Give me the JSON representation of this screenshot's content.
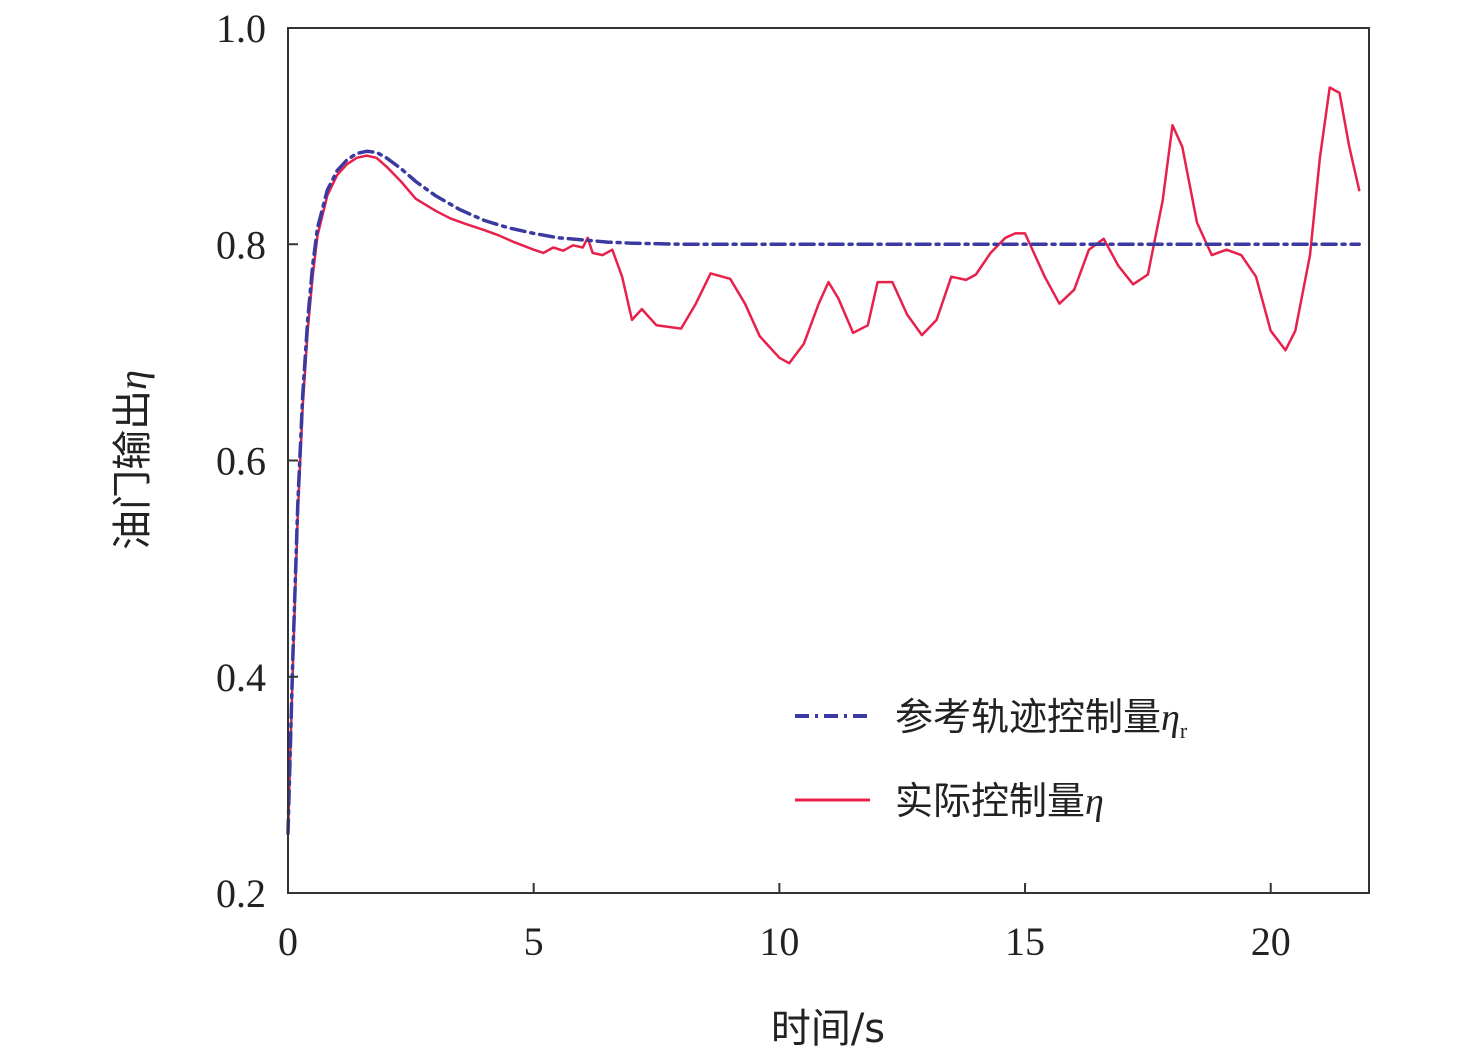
{
  "chart_data": {
    "type": "line",
    "xlabel": "时间/s",
    "ylabel_text": "油门输出",
    "ylabel_symbol": "η",
    "xlim": [
      0,
      22
    ],
    "ylim": [
      0.2,
      1.0
    ],
    "xticks": [
      0,
      5,
      10,
      15,
      20
    ],
    "xtick_labels": [
      "0",
      "5",
      "10",
      "15",
      "20"
    ],
    "yticks": [
      0.2,
      0.4,
      0.6,
      0.8,
      1.0
    ],
    "ytick_labels": [
      "0.2",
      "0.4",
      "0.6",
      "0.8",
      "1.0"
    ],
    "grid": false,
    "legend_position": "bottom-right",
    "series": [
      {
        "name_text": "参考轨迹控制量",
        "name_symbol": "η",
        "name_subscript": "r",
        "color": "#3a3aa0",
        "style": "dash-dot",
        "x": [
          0,
          0.1,
          0.2,
          0.3,
          0.4,
          0.5,
          0.6,
          0.8,
          1.0,
          1.2,
          1.4,
          1.6,
          1.8,
          2.0,
          2.3,
          2.6,
          3.0,
          3.5,
          4.0,
          4.5,
          5.0,
          5.5,
          6.0,
          6.5,
          7.0,
          8.0,
          9.0,
          10.0,
          12.0,
          14.0,
          16.0,
          18.0,
          20.0,
          21.8
        ],
        "y": [
          0.255,
          0.42,
          0.56,
          0.66,
          0.73,
          0.78,
          0.815,
          0.85,
          0.868,
          0.878,
          0.884,
          0.886,
          0.885,
          0.88,
          0.87,
          0.858,
          0.845,
          0.832,
          0.822,
          0.815,
          0.81,
          0.806,
          0.804,
          0.802,
          0.801,
          0.8,
          0.8,
          0.8,
          0.8,
          0.8,
          0.8,
          0.8,
          0.8,
          0.8
        ]
      },
      {
        "name_text": "实际控制量",
        "name_symbol": "η",
        "color": "#e8214b",
        "style": "solid",
        "x": [
          0,
          0.1,
          0.2,
          0.3,
          0.4,
          0.5,
          0.6,
          0.8,
          1.0,
          1.2,
          1.4,
          1.6,
          1.8,
          2.0,
          2.3,
          2.6,
          3.0,
          3.3,
          3.6,
          4.0,
          4.3,
          4.6,
          5.0,
          5.2,
          5.4,
          5.6,
          5.8,
          6.0,
          6.1,
          6.2,
          6.4,
          6.6,
          6.8,
          7.0,
          7.2,
          7.5,
          8.0,
          8.3,
          8.6,
          9.0,
          9.3,
          9.6,
          10.0,
          10.2,
          10.5,
          10.8,
          11.0,
          11.2,
          11.5,
          11.8,
          12.0,
          12.3,
          12.6,
          12.9,
          13.2,
          13.5,
          13.8,
          14.0,
          14.3,
          14.6,
          14.8,
          15.0,
          15.2,
          15.4,
          15.7,
          16.0,
          16.3,
          16.6,
          16.9,
          17.2,
          17.5,
          17.8,
          18.0,
          18.2,
          18.5,
          18.8,
          19.1,
          19.4,
          19.7,
          20.0,
          20.3,
          20.5,
          20.8,
          21.0,
          21.2,
          21.4,
          21.6,
          21.8
        ],
        "y": [
          0.255,
          0.41,
          0.55,
          0.65,
          0.72,
          0.77,
          0.808,
          0.845,
          0.864,
          0.874,
          0.88,
          0.882,
          0.88,
          0.872,
          0.858,
          0.842,
          0.831,
          0.824,
          0.819,
          0.813,
          0.808,
          0.802,
          0.795,
          0.792,
          0.797,
          0.794,
          0.799,
          0.797,
          0.806,
          0.792,
          0.79,
          0.795,
          0.77,
          0.73,
          0.74,
          0.725,
          0.722,
          0.745,
          0.773,
          0.768,
          0.745,
          0.715,
          0.695,
          0.69,
          0.708,
          0.745,
          0.765,
          0.75,
          0.718,
          0.725,
          0.765,
          0.765,
          0.735,
          0.716,
          0.73,
          0.77,
          0.767,
          0.772,
          0.792,
          0.806,
          0.81,
          0.81,
          0.79,
          0.77,
          0.745,
          0.758,
          0.795,
          0.805,
          0.78,
          0.763,
          0.772,
          0.84,
          0.91,
          0.89,
          0.82,
          0.79,
          0.795,
          0.79,
          0.77,
          0.72,
          0.702,
          0.72,
          0.79,
          0.88,
          0.945,
          0.94,
          0.89,
          0.85
        ]
      }
    ]
  }
}
